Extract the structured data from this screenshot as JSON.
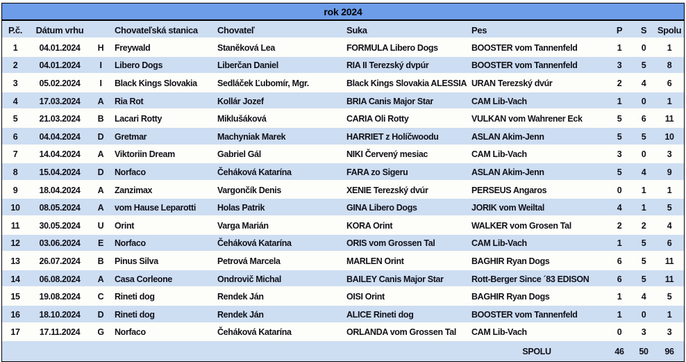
{
  "title": "rok 2024",
  "colors": {
    "header_blue": "#6D9CE8",
    "stripe_blue": "#CDDDF2",
    "row_white": "#FDFDF9",
    "text": "#101018",
    "border": "#000000"
  },
  "table": {
    "columns": [
      "P.č.",
      "Dátum vrhu",
      "",
      "Chovateľská stanica",
      "Chovateľ",
      "Suka",
      "Pes",
      "P",
      "S",
      "Spolu"
    ],
    "rows": [
      {
        "num": "1",
        "date": "04.01.2024",
        "letter": "H",
        "kennel": "Freywald",
        "breeder": "Staněková Lea",
        "suka": "FORMULA Libero Dogs",
        "pes": "BOOSTER vom Tannenfeld",
        "p": "1",
        "s": "0",
        "spolu": "1"
      },
      {
        "num": "2",
        "date": "04.01.2024",
        "letter": "I",
        "kennel": "Libero Dogs",
        "breeder": "Liberčan Daniel",
        "suka": "RIA II Terezský dvpúr",
        "pes": "BOOSTER vom Tannenfeld",
        "p": "3",
        "s": "5",
        "spolu": "8"
      },
      {
        "num": "3",
        "date": "05.02.2024",
        "letter": "I",
        "kennel": "Black Kings Slovakia",
        "breeder": "Sedláček Ľubomír, Mgr.",
        "suka": "Black Kings Slovakia ALESSIA",
        "pes": "URAN Terezský dvúr",
        "p": "2",
        "s": "4",
        "spolu": "6"
      },
      {
        "num": "4",
        "date": "17.03.2024",
        "letter": "A",
        "kennel": "Ria Rot",
        "breeder": "Kollár Jozef",
        "suka": "BRIA Canis Major Star",
        "pes": "CAM Lib-Vach",
        "p": "1",
        "s": "0",
        "spolu": "1"
      },
      {
        "num": "5",
        "date": "21.03.2024",
        "letter": "B",
        "kennel": "Lacari Rotty",
        "breeder": "Miklušáková",
        "suka": "CARIA Oli Rotty",
        "pes": "VULKAN vom Wahrener Eck",
        "p": "5",
        "s": "6",
        "spolu": "11"
      },
      {
        "num": "6",
        "date": "04.04.2024",
        "letter": "D",
        "kennel": "Gretmar",
        "breeder": "Machyniak Marek",
        "suka": "HARRIET z Holíčwoodu",
        "pes": "ASLAN Akim-Jenn",
        "p": "5",
        "s": "5",
        "spolu": "10"
      },
      {
        "num": "7",
        "date": "14.04.2024",
        "letter": "A",
        "kennel": "Viktoriin Dream",
        "breeder": "Gabriel Gál",
        "suka": "NIKI Červený mesiac",
        "pes": "CAM Lib-Vach",
        "p": "3",
        "s": "0",
        "spolu": "3"
      },
      {
        "num": "8",
        "date": "15.04.2024",
        "letter": "D",
        "kennel": "Norfaco",
        "breeder": "Čeháková Katarína",
        "suka": "FARA zo Sigeru",
        "pes": "ASLAN Akim-Jenn",
        "p": "5",
        "s": "4",
        "spolu": "9"
      },
      {
        "num": "9",
        "date": "18.04.2024",
        "letter": "A",
        "kennel": "Zanzimax",
        "breeder": "Vargončík Denis",
        "suka": "XENIE Terezský dvúr",
        "pes": "PERSEUS Angaros",
        "p": "0",
        "s": "1",
        "spolu": "1"
      },
      {
        "num": "10",
        "date": "08.05.2024",
        "letter": "A",
        "kennel": "vom Hause Leparotti",
        "breeder": "Holas Patrik",
        "suka": "GINA Libero Dogs",
        "pes": "JORIK vom Weiltal",
        "p": "4",
        "s": "1",
        "spolu": "5"
      },
      {
        "num": "11",
        "date": "30.05.2024",
        "letter": "U",
        "kennel": "Orint",
        "breeder": "Varga Marián",
        "suka": "KORA Orint",
        "pes": "WALKER vom Grosen Tal",
        "p": "2",
        "s": "2",
        "spolu": "4"
      },
      {
        "num": "12",
        "date": "03.06.2024",
        "letter": "E",
        "kennel": "Norfaco",
        "breeder": "Čeháková Katarína",
        "suka": "ORIS vom Grossen Tal",
        "pes": "CAM Lib-Vach",
        "p": "1",
        "s": "5",
        "spolu": "6"
      },
      {
        "num": "13",
        "date": "26.07.2024",
        "letter": "B",
        "kennel": "Pinus Silva",
        "breeder": "Petrová Marcela",
        "suka": "MARLEN Orint",
        "pes": "BAGHIR Ryan Dogs",
        "p": "6",
        "s": "5",
        "spolu": "11"
      },
      {
        "num": "14",
        "date": "06.08.2024",
        "letter": "A",
        "kennel": "Casa Corleone",
        "breeder": "Ondrovič Michal",
        "suka": "BAILEY Canis Major Star",
        "pes": "Rott-Berger Since ´83 EDISON",
        "p": "6",
        "s": "5",
        "spolu": "11"
      },
      {
        "num": "15",
        "date": "19.08.2024",
        "letter": "C",
        "kennel": "Rineti dog",
        "breeder": "Rendek Ján",
        "suka": "OISI Orint",
        "pes": "BAGHIR Ryan Dogs",
        "p": "1",
        "s": "4",
        "spolu": "5"
      },
      {
        "num": "16",
        "date": "18.10.2024",
        "letter": "D",
        "kennel": "Rineti dog",
        "breeder": "Rendek Ján",
        "suka": "ALICE Rineti dog",
        "pes": "BOOSTER vom Tannenfeld",
        "p": "1",
        "s": "0",
        "spolu": "1"
      },
      {
        "num": "17",
        "date": "17.11.2024",
        "letter": "G",
        "kennel": "Norfaco",
        "breeder": "Čeháková Katarína",
        "suka": "ORLANDA vom Grossen Tal",
        "pes": "CAM Lib-Vach",
        "p": "0",
        "s": "3",
        "spolu": "3"
      }
    ],
    "footer": {
      "label": "SPOLU",
      "p": "46",
      "s": "50",
      "spolu": "96"
    }
  }
}
